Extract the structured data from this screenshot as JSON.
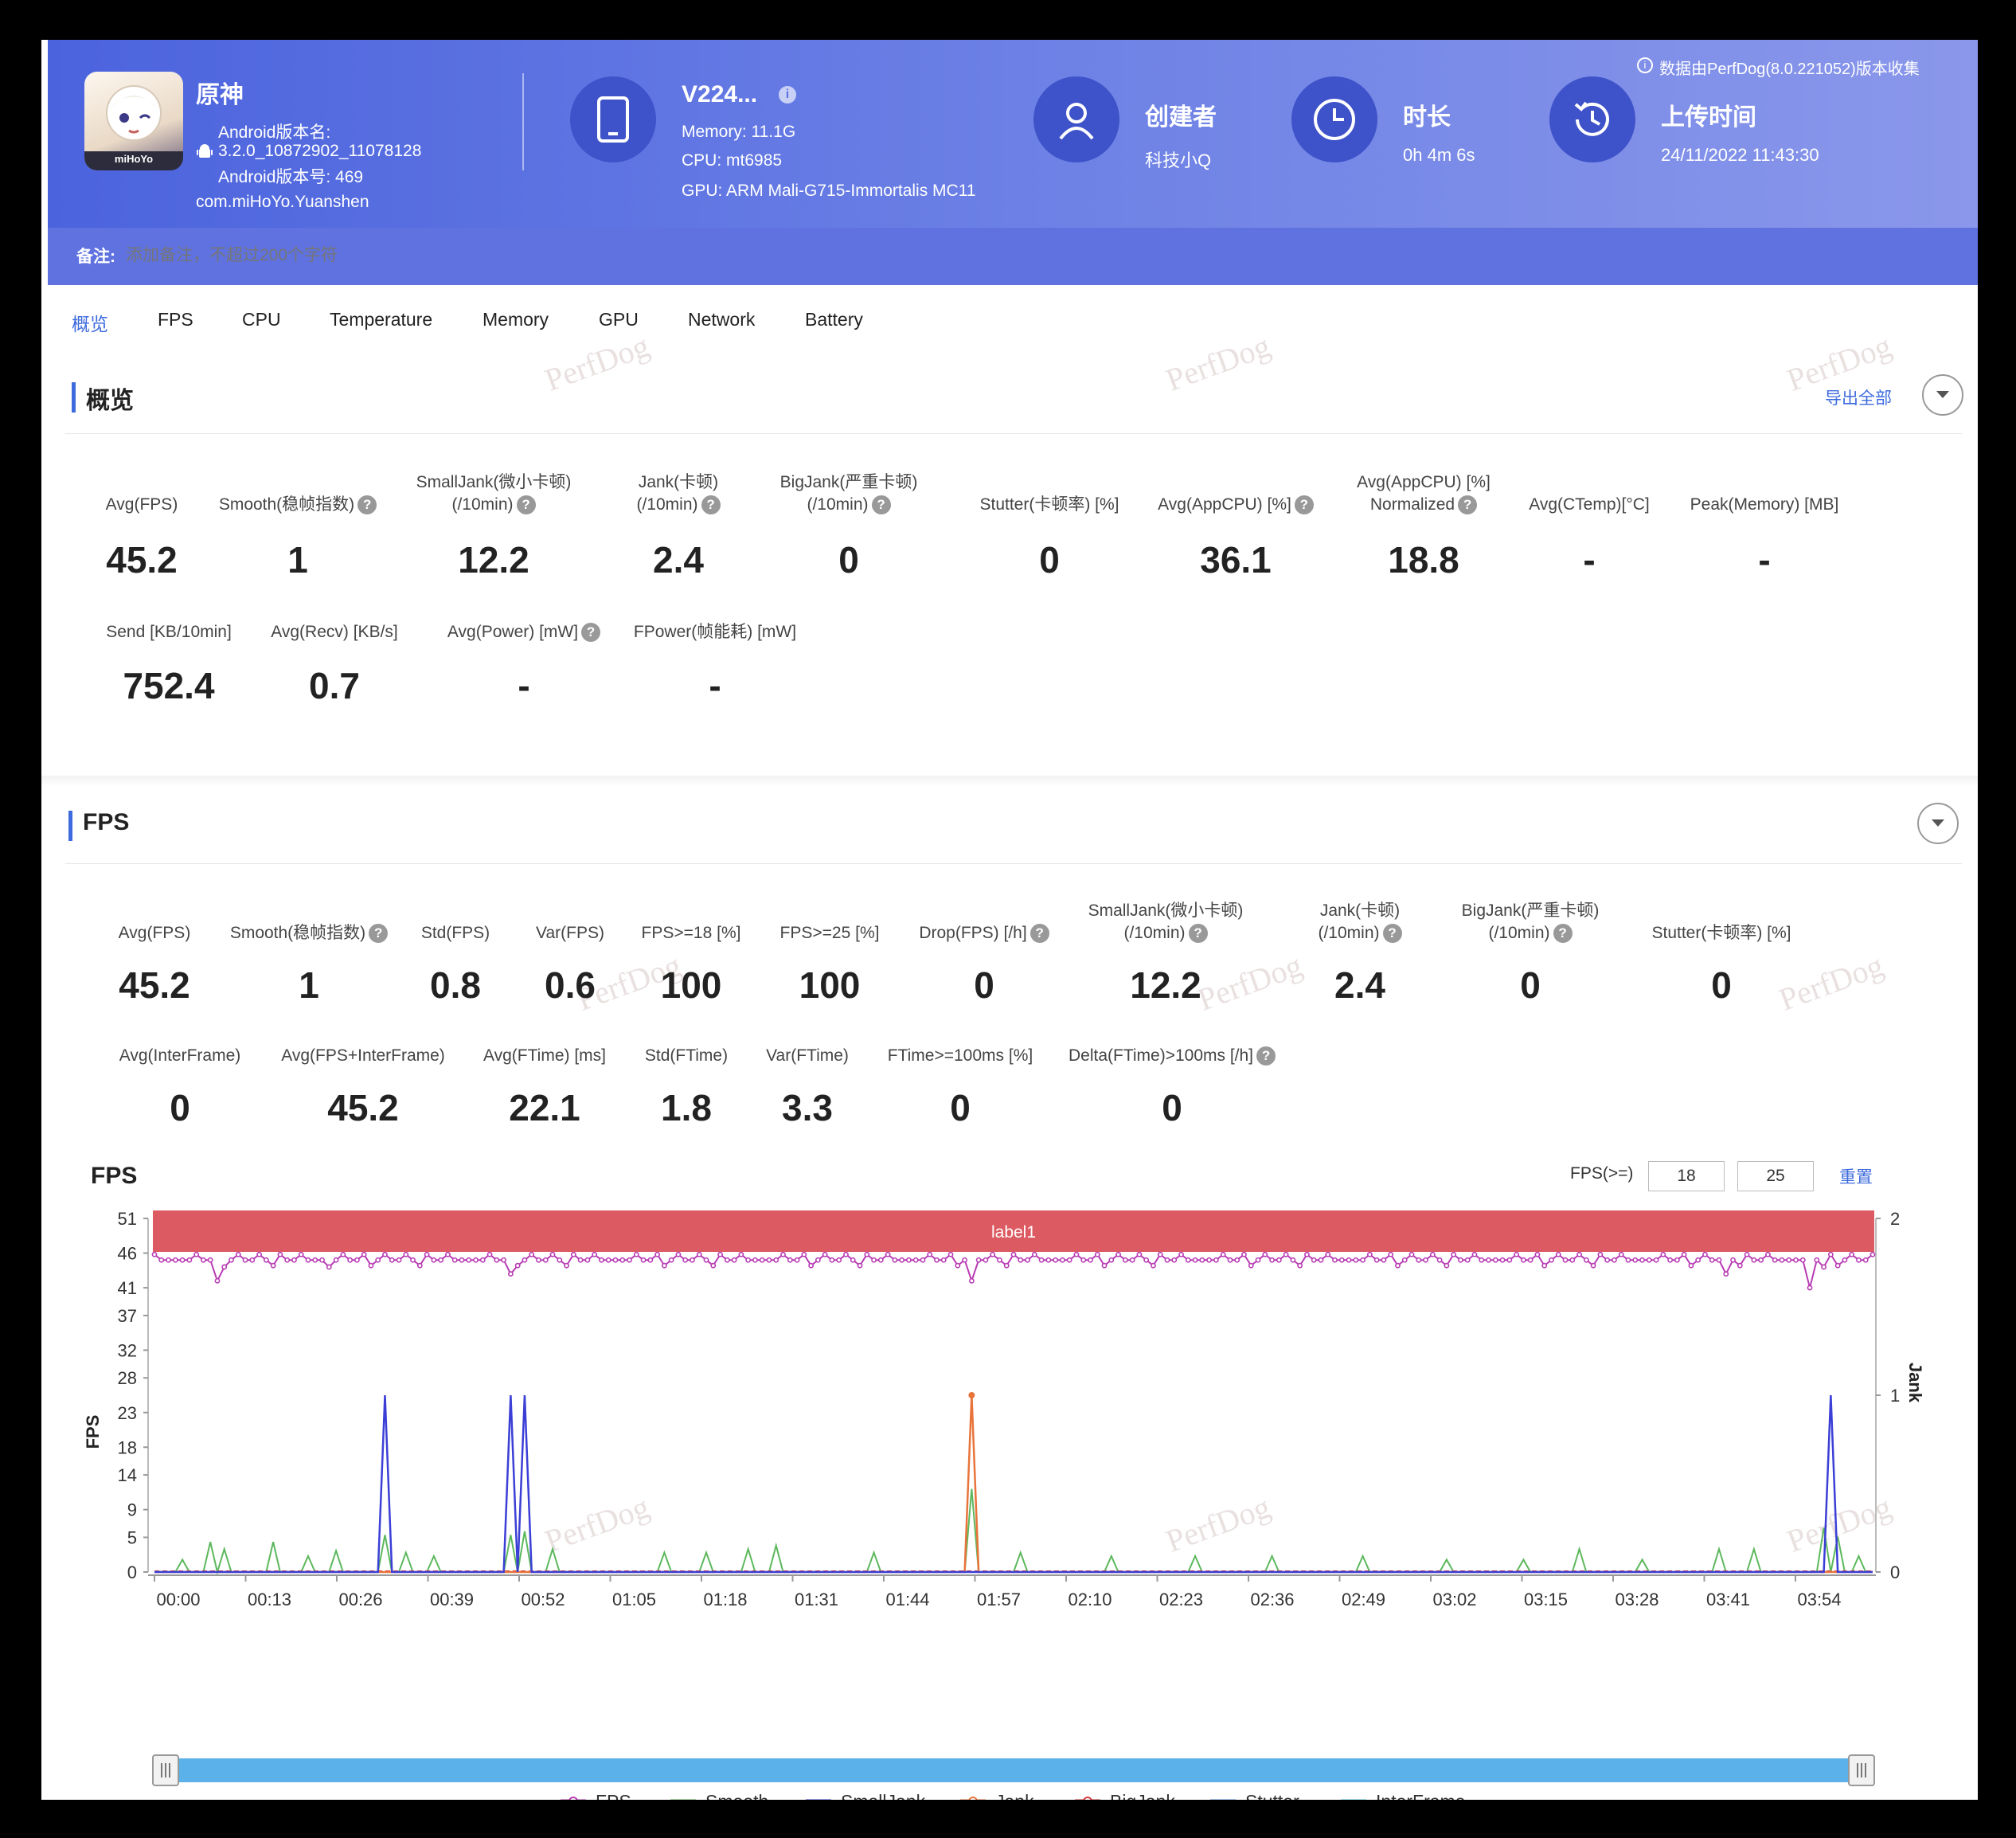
{
  "header": {
    "app_name": "原神",
    "android_version_name_label": "Android版本名:",
    "android_version_name": "3.2.0_10872902_11078128",
    "android_version_code": "Android版本号: 469",
    "package": "com.miHoYo.Yuanshen",
    "app_icon_brand": "miHoYo",
    "device_name": "V224...",
    "memory": "Memory: 11.1G",
    "cpu": "CPU: mt6985",
    "gpu": "GPU: ARM Mali-G715-Immortalis MC11",
    "creator_label": "创建者",
    "creator": "科技小Q",
    "duration_label": "时长",
    "duration": "0h 4m 6s",
    "upload_label": "上传时间",
    "upload_time": "24/11/2022 11:43:30",
    "collected_by": "数据由PerfDog(8.0.221052)版本收集",
    "note_label": "备注:",
    "note_placeholder": "添加备注，不超过200个字符"
  },
  "tabs": [
    "概览",
    "FPS",
    "CPU",
    "Temperature",
    "Memory",
    "GPU",
    "Network",
    "Battery"
  ],
  "active_tab": "概览",
  "watermark": "PerfDog",
  "overview": {
    "title": "概览",
    "export_all": "导出全部",
    "stats_row1": [
      {
        "label1": "",
        "label2": "Avg(FPS)",
        "help": false,
        "value": "45.2"
      },
      {
        "label1": "",
        "label2": "Smooth(稳帧指数)",
        "help": true,
        "value": "1"
      },
      {
        "label1": "SmallJank(微小卡顿)",
        "label2": "(/10min)",
        "help": true,
        "value": "12.2"
      },
      {
        "label1": "Jank(卡顿)",
        "label2": "(/10min)",
        "help": true,
        "value": "2.4"
      },
      {
        "label1": "BigJank(严重卡顿)",
        "label2": "(/10min)",
        "help": true,
        "value": "0"
      },
      {
        "label1": "",
        "label2": "Stutter(卡顿率) [%]",
        "help": false,
        "value": "0"
      },
      {
        "label1": "",
        "label2": "Avg(AppCPU) [%]",
        "help": true,
        "value": "36.1"
      },
      {
        "label1": "Avg(AppCPU) [%]",
        "label2": "Normalized",
        "help": true,
        "value": "18.8"
      },
      {
        "label1": "",
        "label2": "Avg(CTemp)[°C]",
        "help": false,
        "value": "-"
      },
      {
        "label1": "",
        "label2": "Peak(Memory) [MB]",
        "help": false,
        "value": "-"
      }
    ],
    "stats_row2": [
      {
        "label": "Send [KB/10min]",
        "help": false,
        "value": "752.4"
      },
      {
        "label": "Avg(Recv) [KB/s]",
        "help": false,
        "value": "0.7"
      },
      {
        "label": "Avg(Power) [mW]",
        "help": true,
        "value": "-"
      },
      {
        "label": "FPower(帧能耗) [mW]",
        "help": false,
        "value": "-"
      }
    ]
  },
  "fps_section": {
    "title": "FPS",
    "stats_row1": [
      {
        "label1": "",
        "label2": "Avg(FPS)",
        "help": false,
        "value": "45.2"
      },
      {
        "label1": "",
        "label2": "Smooth(稳帧指数)",
        "help": true,
        "value": "1"
      },
      {
        "label1": "",
        "label2": "Std(FPS)",
        "help": false,
        "value": "0.8"
      },
      {
        "label1": "",
        "label2": "Var(FPS)",
        "help": false,
        "value": "0.6"
      },
      {
        "label1": "",
        "label2": "FPS>=18 [%]",
        "help": false,
        "value": "100"
      },
      {
        "label1": "",
        "label2": "FPS>=25 [%]",
        "help": false,
        "value": "100"
      },
      {
        "label1": "",
        "label2": "Drop(FPS) [/h]",
        "help": true,
        "value": "0"
      },
      {
        "label1": "SmallJank(微小卡顿)",
        "label2": "(/10min)",
        "help": true,
        "value": "12.2"
      },
      {
        "label1": "Jank(卡顿)",
        "label2": "(/10min)",
        "help": true,
        "value": "2.4"
      },
      {
        "label1": "BigJank(严重卡顿)",
        "label2": "(/10min)",
        "help": true,
        "value": "0"
      },
      {
        "label1": "",
        "label2": "Stutter(卡顿率) [%]",
        "help": false,
        "value": "0"
      }
    ],
    "stats_row2": [
      {
        "label": "Avg(InterFrame)",
        "help": false,
        "value": "0"
      },
      {
        "label": "Avg(FPS+InterFrame)",
        "help": false,
        "value": "45.2"
      },
      {
        "label": "Avg(FTime) [ms]",
        "help": false,
        "value": "22.1"
      },
      {
        "label": "Std(FTime)",
        "help": false,
        "value": "1.8"
      },
      {
        "label": "Var(FTime)",
        "help": false,
        "value": "3.3"
      },
      {
        "label": "FTime>=100ms [%]",
        "help": false,
        "value": "0"
      },
      {
        "label": "Delta(FTime)>100ms [/h]",
        "help": true,
        "value": "0"
      }
    ],
    "chart_title": "FPS",
    "threshold_label": "FPS(>=)",
    "threshold1": "18",
    "threshold2": "25",
    "reset": "重置",
    "label_band": "label1"
  },
  "chart_data": {
    "type": "line",
    "title": "FPS",
    "ylabel": "FPS",
    "y2label": "Jank",
    "ylim": [
      0,
      51
    ],
    "y2lim": [
      0,
      2
    ],
    "yticks": [
      0,
      5,
      9,
      14,
      18,
      23,
      28,
      32,
      37,
      41,
      46,
      51
    ],
    "y2ticks": [
      0,
      1,
      2
    ],
    "x_ticks": [
      "00:00",
      "00:13",
      "00:26",
      "00:39",
      "00:52",
      "01:05",
      "01:18",
      "01:31",
      "01:44",
      "01:57",
      "02:10",
      "02:23",
      "02:36",
      "02:49",
      "03:02",
      "03:15",
      "03:28",
      "03:41",
      "03:54"
    ],
    "duration_seconds": 246,
    "colors": {
      "FPS": "#b83bb3",
      "Smooth": "#5cb85c",
      "SmallJank": "#3b3fd6",
      "Jank": "#e8743b",
      "BigJank": "#d63b3b",
      "Stutter": "#5b8fe8",
      "InterFrame": "#5bd1e8"
    },
    "legend": [
      "FPS",
      "Smooth",
      "SmallJank",
      "Jank",
      "BigJank",
      "Stutter",
      "InterFrame"
    ],
    "fps_baseline": 45,
    "fps_dips": [
      {
        "t": 9,
        "v": 42
      },
      {
        "t": 10,
        "v": 44
      },
      {
        "t": 25,
        "v": 44
      },
      {
        "t": 51,
        "v": 43
      },
      {
        "t": 117,
        "v": 42
      },
      {
        "t": 225,
        "v": 43
      },
      {
        "t": 237,
        "v": 41
      },
      {
        "t": 239,
        "v": 44
      }
    ],
    "smalljank_spikes": [
      {
        "t": 33,
        "v": 1
      },
      {
        "t": 51,
        "v": 1
      },
      {
        "t": 53,
        "v": 1
      },
      {
        "t": 240,
        "v": 1
      }
    ],
    "jank_spikes": [
      {
        "t": 117,
        "v": 1
      }
    ],
    "smooth_spikes": [
      {
        "t": 4,
        "v": 0.07
      },
      {
        "t": 8,
        "v": 0.17
      },
      {
        "t": 10,
        "v": 0.13
      },
      {
        "t": 17,
        "v": 0.17
      },
      {
        "t": 22,
        "v": 0.09
      },
      {
        "t": 26,
        "v": 0.12
      },
      {
        "t": 33,
        "v": 0.21
      },
      {
        "t": 36,
        "v": 0.11
      },
      {
        "t": 40,
        "v": 0.09
      },
      {
        "t": 51,
        "v": 0.21
      },
      {
        "t": 53,
        "v": 0.23
      },
      {
        "t": 57,
        "v": 0.13
      },
      {
        "t": 73,
        "v": 0.11
      },
      {
        "t": 79,
        "v": 0.11
      },
      {
        "t": 85,
        "v": 0.13
      },
      {
        "t": 89,
        "v": 0.15
      },
      {
        "t": 103,
        "v": 0.11
      },
      {
        "t": 117,
        "v": 0.47
      },
      {
        "t": 124,
        "v": 0.11
      },
      {
        "t": 137,
        "v": 0.09
      },
      {
        "t": 149,
        "v": 0.09
      },
      {
        "t": 160,
        "v": 0.09
      },
      {
        "t": 173,
        "v": 0.09
      },
      {
        "t": 185,
        "v": 0.07
      },
      {
        "t": 196,
        "v": 0.07
      },
      {
        "t": 204,
        "v": 0.13
      },
      {
        "t": 213,
        "v": 0.07
      },
      {
        "t": 224,
        "v": 0.13
      },
      {
        "t": 229,
        "v": 0.13
      },
      {
        "t": 239,
        "v": 0.25
      },
      {
        "t": 241,
        "v": 0.2
      },
      {
        "t": 244,
        "v": 0.09
      }
    ]
  }
}
